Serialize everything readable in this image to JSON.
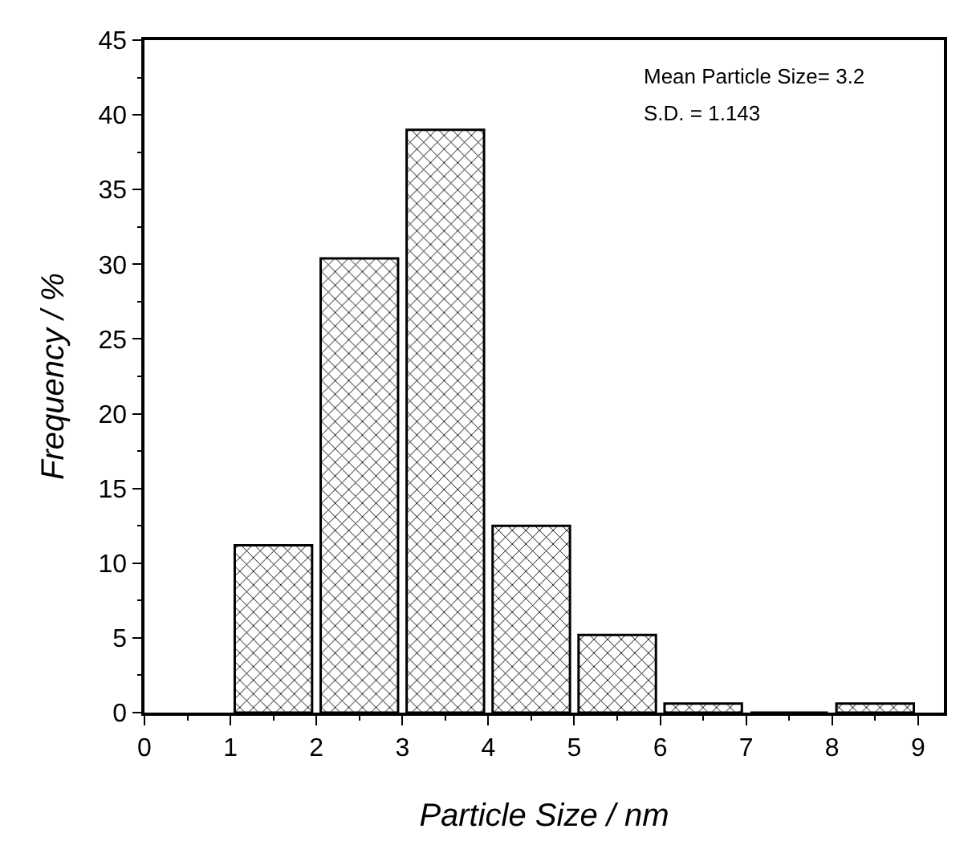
{
  "chart_data": {
    "type": "histogram",
    "xlabel": "Particle Size / nm",
    "ylabel": "Frequency / %",
    "bins": [
      1,
      2,
      3,
      4,
      5,
      6,
      7,
      8,
      9
    ],
    "values": [
      11.2,
      30.4,
      39,
      12.5,
      5.2,
      0.6,
      0,
      0.6
    ],
    "color": "#000000",
    "xlim": [
      0,
      9.3
    ],
    "xticks": [
      0,
      1,
      2,
      3,
      4,
      5,
      6,
      7,
      8,
      9
    ],
    "ylim": [
      0,
      45
    ],
    "yticks": [
      0,
      5,
      10,
      15,
      20,
      25,
      30,
      35,
      40,
      45
    ],
    "annotations": [
      "Mean Particle Size= 3.2",
      "S.D. = 1.143"
    ]
  }
}
